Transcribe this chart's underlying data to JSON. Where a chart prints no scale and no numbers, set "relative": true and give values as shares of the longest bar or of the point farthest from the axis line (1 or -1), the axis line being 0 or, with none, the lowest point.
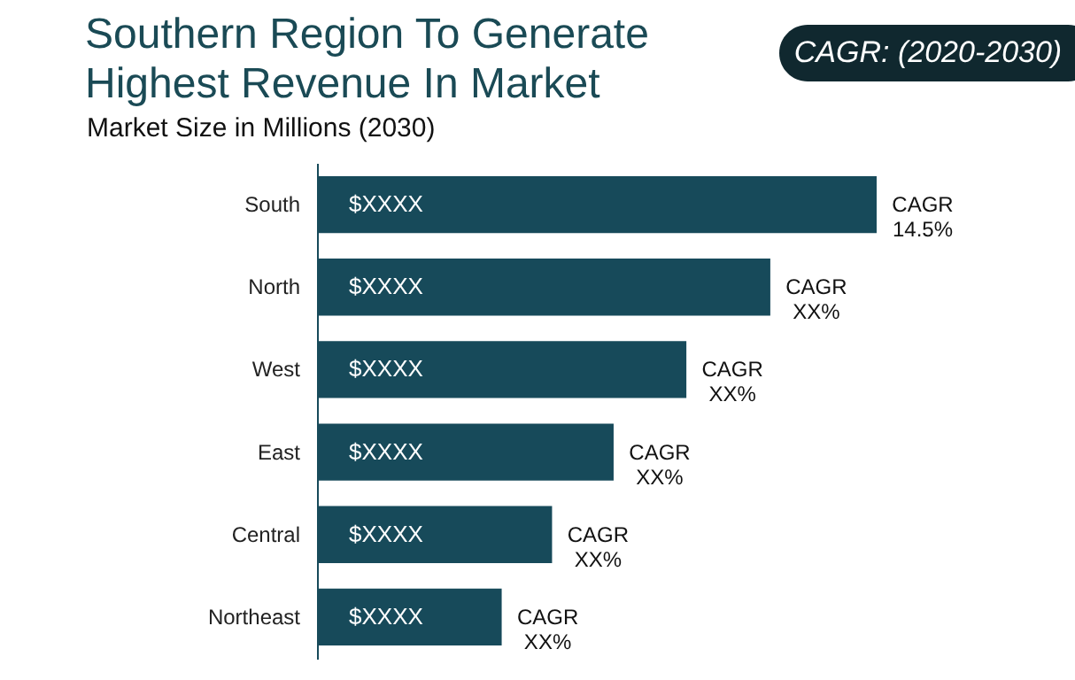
{
  "chart_data": {
    "type": "bar",
    "orientation": "horizontal",
    "relative": true,
    "title": "Southern Region To Generate\nHighest Revenue In Market",
    "subtitle": "Market Size in Millions (2030)",
    "categories": [
      "South",
      "North",
      "West",
      "East",
      "Central",
      "Northeast"
    ],
    "values": [
      1,
      0.81,
      0.66,
      0.53,
      0.42,
      0.33
    ],
    "color": "#174a5a",
    "annotations": [
      "CAGR: (2020-2030)",
      {
        "text": "$XXXX",
        "x": 0,
        "y": "South"
      },
      {
        "text": "$XXXX",
        "x": 0,
        "y": "North"
      },
      {
        "text": "$XXXX",
        "x": 0,
        "y": "West"
      },
      {
        "text": "$XXXX",
        "x": 0,
        "y": "East"
      },
      {
        "text": "$XXXX",
        "x": 0,
        "y": "Central"
      },
      {
        "text": "$XXXX",
        "x": 0,
        "y": "Northeast"
      },
      {
        "text": "CAGR\n14.5%",
        "x": 1,
        "y": "South"
      },
      {
        "text": "CAGR\nXX%",
        "x": 0.81,
        "y": "North"
      },
      {
        "text": "CAGR\nXX%",
        "x": 0.66,
        "y": "West"
      },
      {
        "text": "CAGR\nXX%",
        "x": 0.53,
        "y": "East"
      },
      {
        "text": "CAGR\nXX%",
        "x": 0.42,
        "y": "Central"
      },
      {
        "text": "CAGR\nXX%",
        "x": 0.33,
        "y": "Northeast"
      }
    ]
  }
}
